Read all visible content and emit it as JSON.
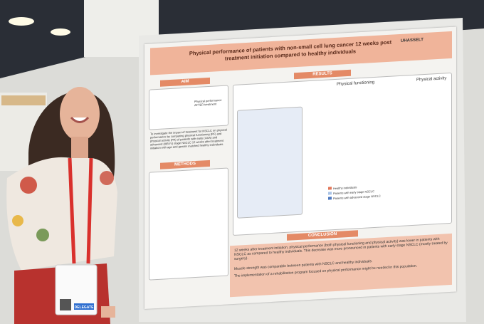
{
  "poster": {
    "title": "Physical performance of patients with non-small cell lung cancer 12 weeks post treatment initiation compared to healthy individuals",
    "logo": "UHASSELT",
    "aim": {
      "heading": "AIM",
      "text": "To investigate the impact of treatment for NSCLC on physical performance by comparing physical functioning (PF) and physical activity (PA) of patients with early (I-IIIA) and advanced (IIIB-IV) stage NSCLC 12 weeks after treatment initiation with age and gender matched healthy individuals.",
      "box_after": "Physical performance AFTER treatment"
    },
    "methods": {
      "heading": "METHODS"
    },
    "results": {
      "heading": "RESULTS",
      "physical_functioning": "Physical functioning",
      "physical_activity": "Physical activity",
      "legend": [
        "Healthy individuals",
        "Patients with early stage NSCLC",
        "Patients with advanced stage NSCLC"
      ]
    },
    "conclusion": {
      "heading": "CONCLUSION",
      "points": [
        "12 weeks after treatment initiation, physical performance (both physical functioning and physical activity) was lower in patients with NSCLC as compared to healthy individuals. This decrease was more pronounced in patients with early stage NSCLC (mostly treated by surgery).",
        "Muscle strength was comparable between patients with NSCLC and healthy individuals.",
        "The implementation of a rehabilitation program focused on physical performance might be needed in this population."
      ]
    }
  },
  "badge": {
    "label": "DELEGATE"
  }
}
